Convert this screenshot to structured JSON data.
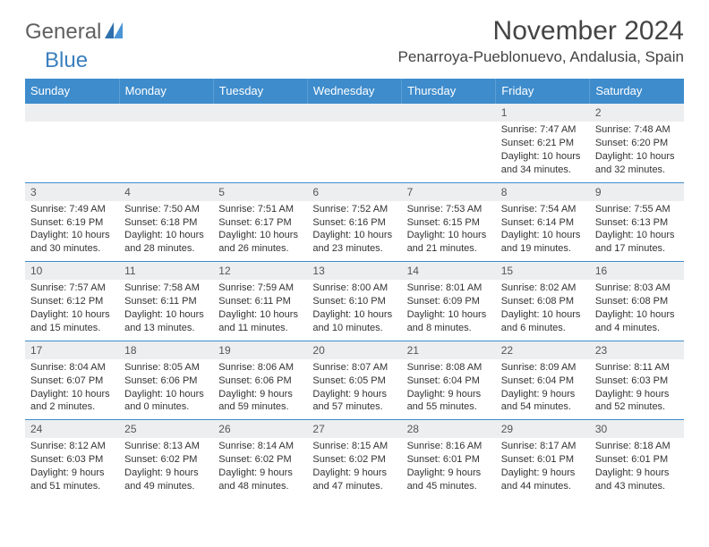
{
  "logo": {
    "general": "General",
    "blue": "Blue"
  },
  "title": "November 2024",
  "location": "Penarroya-Pueblonuevo, Andalusia, Spain",
  "colors": {
    "header_bg": "#3e8ccc",
    "header_text": "#ffffff",
    "daynum_bg": "#eceeef",
    "rule": "#3e8ccc",
    "logo_blue": "#3b7fbf",
    "logo_gray": "#606060",
    "text": "#333333"
  },
  "day_headers": [
    "Sunday",
    "Monday",
    "Tuesday",
    "Wednesday",
    "Thursday",
    "Friday",
    "Saturday"
  ],
  "weeks": [
    [
      null,
      null,
      null,
      null,
      null,
      {
        "n": "1",
        "sr": "Sunrise: 7:47 AM",
        "ss": "Sunset: 6:21 PM",
        "dl1": "Daylight: 10 hours",
        "dl2": "and 34 minutes."
      },
      {
        "n": "2",
        "sr": "Sunrise: 7:48 AM",
        "ss": "Sunset: 6:20 PM",
        "dl1": "Daylight: 10 hours",
        "dl2": "and 32 minutes."
      }
    ],
    [
      {
        "n": "3",
        "sr": "Sunrise: 7:49 AM",
        "ss": "Sunset: 6:19 PM",
        "dl1": "Daylight: 10 hours",
        "dl2": "and 30 minutes."
      },
      {
        "n": "4",
        "sr": "Sunrise: 7:50 AM",
        "ss": "Sunset: 6:18 PM",
        "dl1": "Daylight: 10 hours",
        "dl2": "and 28 minutes."
      },
      {
        "n": "5",
        "sr": "Sunrise: 7:51 AM",
        "ss": "Sunset: 6:17 PM",
        "dl1": "Daylight: 10 hours",
        "dl2": "and 26 minutes."
      },
      {
        "n": "6",
        "sr": "Sunrise: 7:52 AM",
        "ss": "Sunset: 6:16 PM",
        "dl1": "Daylight: 10 hours",
        "dl2": "and 23 minutes."
      },
      {
        "n": "7",
        "sr": "Sunrise: 7:53 AM",
        "ss": "Sunset: 6:15 PM",
        "dl1": "Daylight: 10 hours",
        "dl2": "and 21 minutes."
      },
      {
        "n": "8",
        "sr": "Sunrise: 7:54 AM",
        "ss": "Sunset: 6:14 PM",
        "dl1": "Daylight: 10 hours",
        "dl2": "and 19 minutes."
      },
      {
        "n": "9",
        "sr": "Sunrise: 7:55 AM",
        "ss": "Sunset: 6:13 PM",
        "dl1": "Daylight: 10 hours",
        "dl2": "and 17 minutes."
      }
    ],
    [
      {
        "n": "10",
        "sr": "Sunrise: 7:57 AM",
        "ss": "Sunset: 6:12 PM",
        "dl1": "Daylight: 10 hours",
        "dl2": "and 15 minutes."
      },
      {
        "n": "11",
        "sr": "Sunrise: 7:58 AM",
        "ss": "Sunset: 6:11 PM",
        "dl1": "Daylight: 10 hours",
        "dl2": "and 13 minutes."
      },
      {
        "n": "12",
        "sr": "Sunrise: 7:59 AM",
        "ss": "Sunset: 6:11 PM",
        "dl1": "Daylight: 10 hours",
        "dl2": "and 11 minutes."
      },
      {
        "n": "13",
        "sr": "Sunrise: 8:00 AM",
        "ss": "Sunset: 6:10 PM",
        "dl1": "Daylight: 10 hours",
        "dl2": "and 10 minutes."
      },
      {
        "n": "14",
        "sr": "Sunrise: 8:01 AM",
        "ss": "Sunset: 6:09 PM",
        "dl1": "Daylight: 10 hours",
        "dl2": "and 8 minutes."
      },
      {
        "n": "15",
        "sr": "Sunrise: 8:02 AM",
        "ss": "Sunset: 6:08 PM",
        "dl1": "Daylight: 10 hours",
        "dl2": "and 6 minutes."
      },
      {
        "n": "16",
        "sr": "Sunrise: 8:03 AM",
        "ss": "Sunset: 6:08 PM",
        "dl1": "Daylight: 10 hours",
        "dl2": "and 4 minutes."
      }
    ],
    [
      {
        "n": "17",
        "sr": "Sunrise: 8:04 AM",
        "ss": "Sunset: 6:07 PM",
        "dl1": "Daylight: 10 hours",
        "dl2": "and 2 minutes."
      },
      {
        "n": "18",
        "sr": "Sunrise: 8:05 AM",
        "ss": "Sunset: 6:06 PM",
        "dl1": "Daylight: 10 hours",
        "dl2": "and 0 minutes."
      },
      {
        "n": "19",
        "sr": "Sunrise: 8:06 AM",
        "ss": "Sunset: 6:06 PM",
        "dl1": "Daylight: 9 hours",
        "dl2": "and 59 minutes."
      },
      {
        "n": "20",
        "sr": "Sunrise: 8:07 AM",
        "ss": "Sunset: 6:05 PM",
        "dl1": "Daylight: 9 hours",
        "dl2": "and 57 minutes."
      },
      {
        "n": "21",
        "sr": "Sunrise: 8:08 AM",
        "ss": "Sunset: 6:04 PM",
        "dl1": "Daylight: 9 hours",
        "dl2": "and 55 minutes."
      },
      {
        "n": "22",
        "sr": "Sunrise: 8:09 AM",
        "ss": "Sunset: 6:04 PM",
        "dl1": "Daylight: 9 hours",
        "dl2": "and 54 minutes."
      },
      {
        "n": "23",
        "sr": "Sunrise: 8:11 AM",
        "ss": "Sunset: 6:03 PM",
        "dl1": "Daylight: 9 hours",
        "dl2": "and 52 minutes."
      }
    ],
    [
      {
        "n": "24",
        "sr": "Sunrise: 8:12 AM",
        "ss": "Sunset: 6:03 PM",
        "dl1": "Daylight: 9 hours",
        "dl2": "and 51 minutes."
      },
      {
        "n": "25",
        "sr": "Sunrise: 8:13 AM",
        "ss": "Sunset: 6:02 PM",
        "dl1": "Daylight: 9 hours",
        "dl2": "and 49 minutes."
      },
      {
        "n": "26",
        "sr": "Sunrise: 8:14 AM",
        "ss": "Sunset: 6:02 PM",
        "dl1": "Daylight: 9 hours",
        "dl2": "and 48 minutes."
      },
      {
        "n": "27",
        "sr": "Sunrise: 8:15 AM",
        "ss": "Sunset: 6:02 PM",
        "dl1": "Daylight: 9 hours",
        "dl2": "and 47 minutes."
      },
      {
        "n": "28",
        "sr": "Sunrise: 8:16 AM",
        "ss": "Sunset: 6:01 PM",
        "dl1": "Daylight: 9 hours",
        "dl2": "and 45 minutes."
      },
      {
        "n": "29",
        "sr": "Sunrise: 8:17 AM",
        "ss": "Sunset: 6:01 PM",
        "dl1": "Daylight: 9 hours",
        "dl2": "and 44 minutes."
      },
      {
        "n": "30",
        "sr": "Sunrise: 8:18 AM",
        "ss": "Sunset: 6:01 PM",
        "dl1": "Daylight: 9 hours",
        "dl2": "and 43 minutes."
      }
    ]
  ]
}
